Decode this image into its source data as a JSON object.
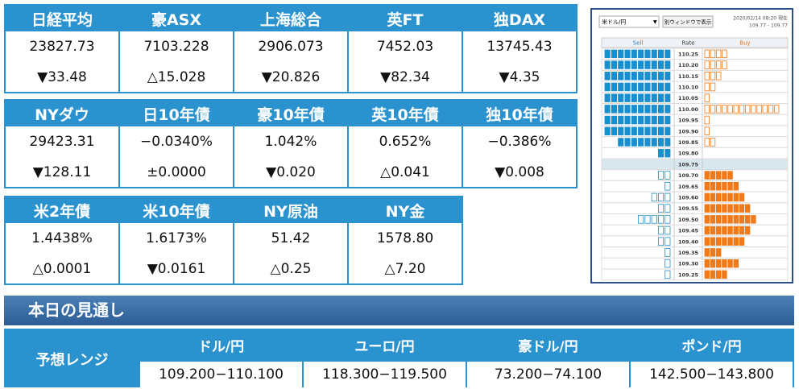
{
  "markets": [
    [
      {
        "name": "日経平均",
        "value": "23827.73",
        "change": "▼33.48"
      },
      {
        "name": "豪ASX",
        "value": "7103.228",
        "change": "△15.028"
      },
      {
        "name": "上海総合",
        "value": "2906.073",
        "change": "▼20.826"
      },
      {
        "name": "英FT",
        "value": "7452.03",
        "change": "▼82.34"
      },
      {
        "name": "独DAX",
        "value": "13745.43",
        "change": "▼4.35"
      }
    ],
    [
      {
        "name": "NYダウ",
        "value": "29423.31",
        "change": "▼128.11"
      },
      {
        "name": "日10年債",
        "value": "−0.0340%",
        "change": "±0.0000"
      },
      {
        "name": "豪10年債",
        "value": "1.042%",
        "change": "▼0.020"
      },
      {
        "name": "英10年債",
        "value": "0.652%",
        "change": "△0.041"
      },
      {
        "name": "独10年債",
        "value": "−0.386%",
        "change": "▼0.008"
      }
    ],
    [
      {
        "name": "米2年債",
        "value": "1.4438%",
        "change": "△0.0001"
      },
      {
        "name": "米10年債",
        "value": "1.6173%",
        "change": "▼0.0161"
      },
      {
        "name": "NY原油",
        "value": "51.42",
        "change": "△0.25"
      },
      {
        "name": "NY金",
        "value": "1578.80",
        "change": "△7.20"
      }
    ]
  ],
  "order_book": {
    "pair": "米ドル/円",
    "button": "別ウィンドウで表示",
    "timestamp": "2020/02/14 08:20 現在",
    "range": "109.77 - 109.77",
    "headers": {
      "sell": "Sell",
      "rate": "Rate",
      "buy": "Buy"
    },
    "rows": [
      {
        "rate": "110.25",
        "sell": 10,
        "buy": 4
      },
      {
        "rate": "110.20",
        "sell": 10,
        "buy": 4
      },
      {
        "rate": "110.15",
        "sell": 10,
        "buy": 3
      },
      {
        "rate": "110.10",
        "sell": 10,
        "buy": 2
      },
      {
        "rate": "110.05",
        "sell": 10,
        "buy": 1
      },
      {
        "rate": "110.00",
        "sell": 10,
        "buy": 13
      },
      {
        "rate": "109.95",
        "sell": 10,
        "buy": 1
      },
      {
        "rate": "109.90",
        "sell": 10,
        "buy": 1
      },
      {
        "rate": "109.85",
        "sell": 8,
        "buy": 2
      },
      {
        "rate": "109.80",
        "sell": 2,
        "buy": 0
      },
      {
        "rate": "109.75"
      },
      {
        "rate": "109.70",
        "sell": 2,
        "buy": 5
      },
      {
        "rate": "109.65",
        "sell": 1,
        "buy": 6
      },
      {
        "rate": "109.60",
        "sell": 3,
        "buy": 7
      },
      {
        "rate": "109.55",
        "sell": 2,
        "buy": 8
      },
      {
        "rate": "109.50",
        "sell": 5,
        "buy": 9
      },
      {
        "rate": "109.45",
        "sell": 2,
        "buy": 8
      },
      {
        "rate": "109.40",
        "sell": 2,
        "buy": 7
      },
      {
        "rate": "109.35",
        "sell": 1,
        "buy": 3
      },
      {
        "rate": "109.30",
        "sell": 1,
        "buy": 6
      },
      {
        "rate": "109.25",
        "sell": 1,
        "buy": 4
      }
    ]
  },
  "outlook": {
    "title": "本日の見通し",
    "label": "予想レンジ",
    "columns": [
      {
        "pair": "ドル/円",
        "range": "109.200−110.100"
      },
      {
        "pair": "ユーロ/円",
        "range": "118.300−119.500"
      },
      {
        "pair": "豪ドル/円",
        "range": "73.200−74.100"
      },
      {
        "pair": "ポンド/円",
        "range": "142.500−143.800"
      }
    ]
  }
}
